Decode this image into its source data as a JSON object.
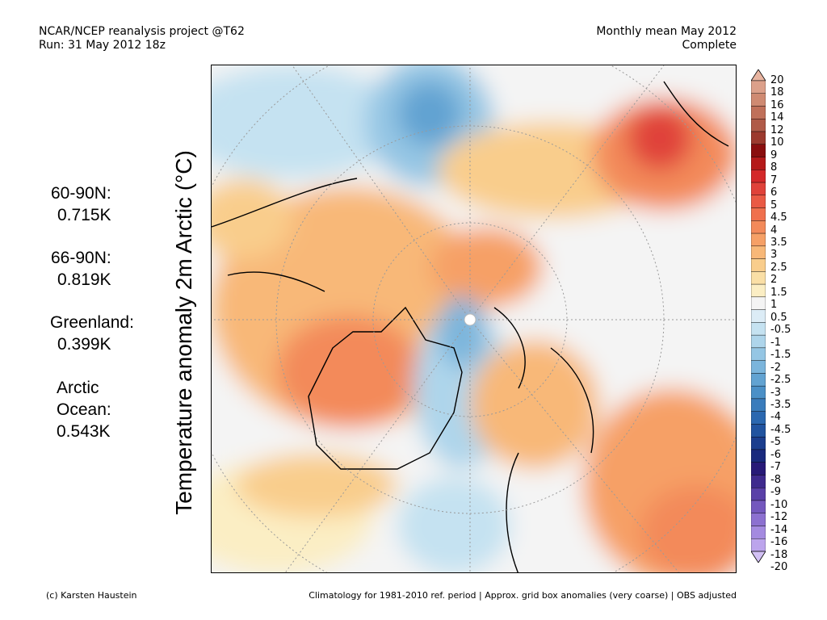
{
  "header": {
    "left_line1": "NCAR/NCEP reanalysis project @T62",
    "left_line2": "Run: 31 May 2012 18z",
    "right_line1": "Monthly mean May 2012",
    "right_line2": "Complete"
  },
  "y_axis_label": "Temperature anomaly 2m Arctic (°C)",
  "stats": [
    {
      "label": "60-90N:",
      "value": "0.715K"
    },
    {
      "label": "66-90N:",
      "value": "0.819K"
    },
    {
      "label": "Greenland:",
      "value": "0.399K"
    },
    {
      "label_line1": "Arctic",
      "label_line2": "Ocean:",
      "value": "0.543K"
    }
  ],
  "colorbar": {
    "labels": [
      "20",
      "18",
      "16",
      "14",
      "12",
      "10",
      "9",
      "8",
      "7",
      "6",
      "5",
      "4.5",
      "4",
      "3.5",
      "3",
      "2.5",
      "2",
      "1.5",
      "1",
      "0.5",
      "-0.5",
      "-1",
      "-1.5",
      "-2",
      "-2.5",
      "-3",
      "-3.5",
      "-4",
      "-4.5",
      "-5",
      "-6",
      "-7",
      "-8",
      "-9",
      "-10",
      "-12",
      "-14",
      "-16",
      "-18",
      "-20"
    ],
    "colors": [
      "#e8b4a0",
      "#dca08a",
      "#cf8a72",
      "#c0705a",
      "#b05a48",
      "#9c3a2e",
      "#8a0e0e",
      "#b51a1a",
      "#d4292a",
      "#e0423a",
      "#ea5a45",
      "#f0704e",
      "#f38a5a",
      "#f6a066",
      "#f8b878",
      "#f9cd8c",
      "#fadfa6",
      "#fbeec4",
      "#f4f4f4",
      "#dcecf6",
      "#c5e2f1",
      "#aed5eb",
      "#95c6e4",
      "#7bb5dc",
      "#62a3d2",
      "#4b90c7",
      "#3a7cbc",
      "#2b68b0",
      "#2154a0",
      "#1b3e8e",
      "#1a2a7e",
      "#281a78",
      "#3f2a8e",
      "#5a40a8",
      "#7458be",
      "#8c70d0",
      "#a48ae0",
      "#bca4ec",
      "#d2c0f4"
    ]
  }
}
